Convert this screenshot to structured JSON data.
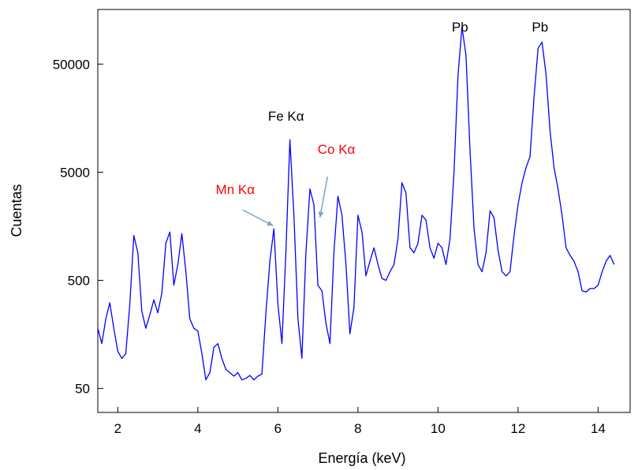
{
  "chart_data": {
    "type": "line",
    "title": "",
    "xlabel": "Energía (keV)",
    "ylabel": "Cuentas",
    "yscale": "log",
    "xlim": [
      1.5,
      14.8
    ],
    "ylim": [
      30,
      160000
    ],
    "xticks": [
      2,
      4,
      6,
      8,
      10,
      12,
      14
    ],
    "xtick_labels": [
      "2",
      "4",
      "6",
      "8",
      "10",
      "12",
      "14"
    ],
    "yticks": [
      50,
      500,
      5000,
      50000
    ],
    "ytick_labels": [
      "50",
      "500",
      "5000",
      "50000"
    ],
    "grid": false,
    "legend": "none",
    "series": [
      {
        "color": "#0000ff",
        "x": [
          1.5,
          1.6,
          1.7,
          1.8,
          1.9,
          2.0,
          2.1,
          2.2,
          2.3,
          2.4,
          2.5,
          2.6,
          2.7,
          2.8,
          2.9,
          3.0,
          3.1,
          3.2,
          3.3,
          3.4,
          3.5,
          3.6,
          3.7,
          3.8,
          3.9,
          4.0,
          4.1,
          4.2,
          4.3,
          4.4,
          4.5,
          4.6,
          4.7,
          4.8,
          4.9,
          5.0,
          5.1,
          5.2,
          5.3,
          5.4,
          5.5,
          5.6,
          5.7,
          5.8,
          5.9,
          6.0,
          6.1,
          6.2,
          6.3,
          6.4,
          6.5,
          6.6,
          6.7,
          6.8,
          6.9,
          7.0,
          7.1,
          7.2,
          7.3,
          7.4,
          7.5,
          7.6,
          7.7,
          7.8,
          7.9,
          8.0,
          8.1,
          8.2,
          8.3,
          8.4,
          8.5,
          8.6,
          8.7,
          8.8,
          8.9,
          9.0,
          9.1,
          9.2,
          9.3,
          9.4,
          9.5,
          9.6,
          9.7,
          9.8,
          9.9,
          10.0,
          10.1,
          10.2,
          10.3,
          10.4,
          10.5,
          10.6,
          10.7,
          10.8,
          10.9,
          11.0,
          11.1,
          11.2,
          11.3,
          11.4,
          11.5,
          11.6,
          11.7,
          11.8,
          11.9,
          12.0,
          12.1,
          12.2,
          12.3,
          12.4,
          12.5,
          12.6,
          12.7,
          12.8,
          12.9,
          13.0,
          13.1,
          13.2,
          13.3,
          13.4,
          13.5,
          13.6,
          13.7,
          13.8,
          13.9,
          14.0,
          14.1,
          14.2,
          14.3,
          14.4
        ],
        "y": [
          180,
          130,
          220,
          310,
          180,
          110,
          95,
          105,
          300,
          1300,
          900,
          260,
          180,
          240,
          330,
          250,
          380,
          1100,
          1400,
          450,
          700,
          1350,
          600,
          220,
          180,
          170,
          105,
          60,
          70,
          120,
          130,
          95,
          75,
          70,
          65,
          70,
          60,
          62,
          66,
          60,
          65,
          68,
          250,
          750,
          1500,
          300,
          130,
          900,
          10000,
          2000,
          220,
          95,
          900,
          3500,
          2500,
          450,
          400,
          200,
          130,
          900,
          3000,
          2000,
          700,
          160,
          280,
          2000,
          1400,
          550,
          750,
          1000,
          700,
          520,
          500,
          600,
          700,
          1200,
          4000,
          3200,
          1000,
          900,
          1100,
          2000,
          1800,
          1000,
          800,
          1100,
          1000,
          700,
          1200,
          5000,
          40000,
          110000,
          60000,
          8000,
          1500,
          700,
          600,
          900,
          2200,
          1900,
          950,
          600,
          550,
          600,
          1300,
          2500,
          4000,
          5500,
          7000,
          25000,
          70000,
          80000,
          40000,
          12000,
          5500,
          3500,
          2000,
          1000,
          850,
          750,
          600,
          400,
          390,
          420,
          420,
          450,
          600,
          750,
          850,
          700
        ]
      }
    ],
    "annotations": [
      {
        "text": "Pb",
        "x": 10.55,
        "color": "#000000"
      },
      {
        "text": "Pb",
        "x": 12.55,
        "color": "#000000"
      },
      {
        "text": "Fe Kα",
        "x": 6.4,
        "color": "#000000"
      },
      {
        "text": "Co Kα",
        "x": 6.93,
        "color": "#ff0000",
        "arrow_to": [
          7.05,
          1900
        ]
      },
      {
        "text": "Mn Kα",
        "x": 5.9,
        "color": "#ff0000",
        "arrow_to": [
          5.88,
          1600
        ]
      }
    ],
    "arrow_color": "#7aa4c8"
  }
}
